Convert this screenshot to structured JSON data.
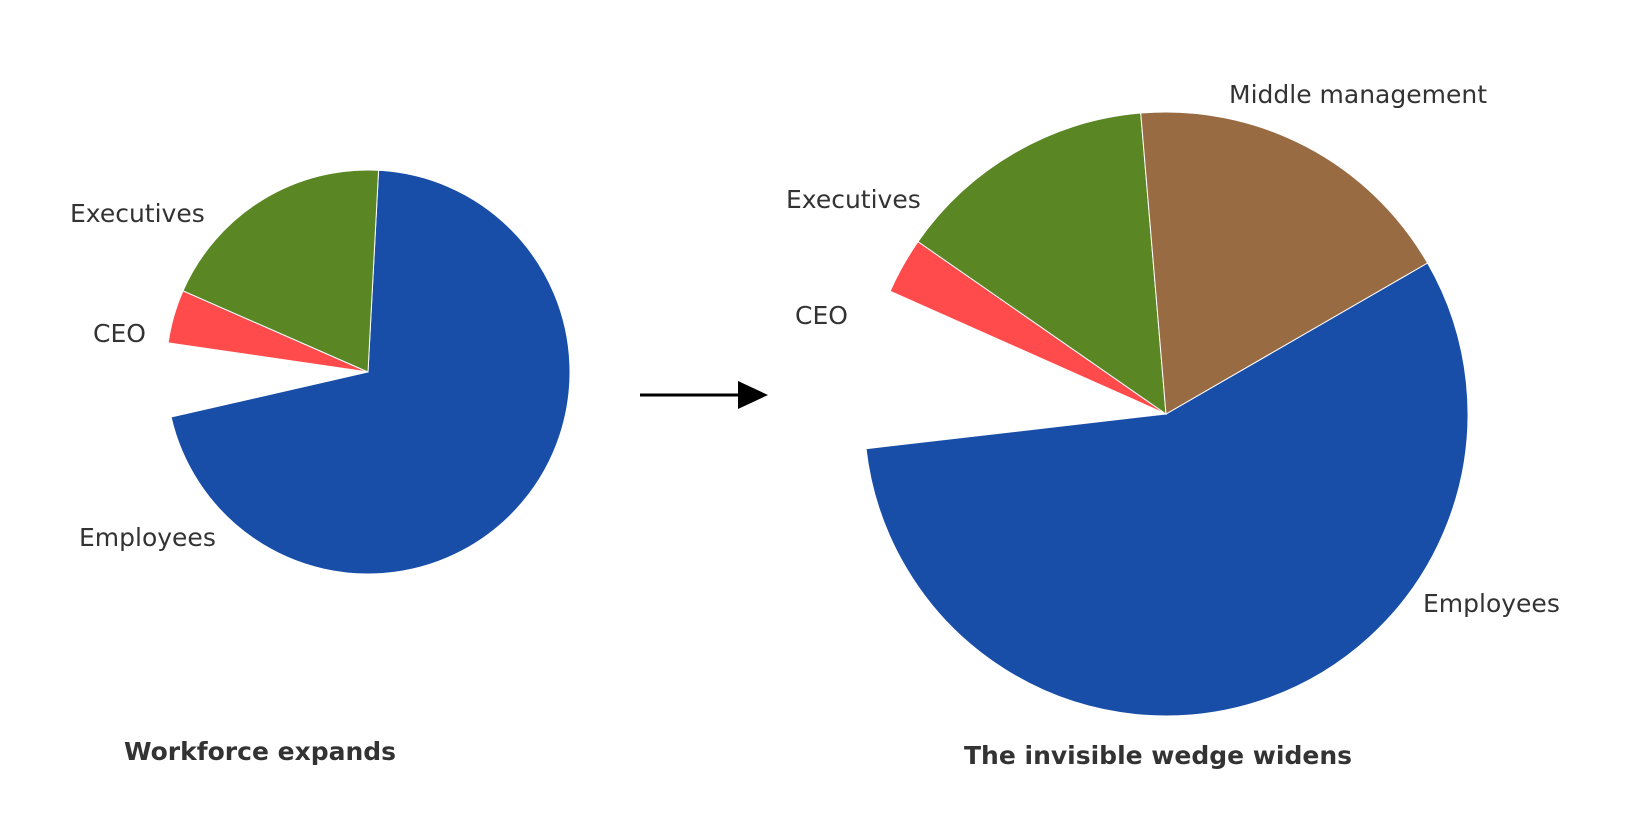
{
  "chart_data": [
    {
      "type": "pie",
      "title": "Workforce expands",
      "slices": [
        {
          "label": "Employees",
          "value": 66,
          "color": "#184ea8"
        },
        {
          "label": "",
          "value": 5.5,
          "color": "#ffffff"
        },
        {
          "label": "CEO",
          "value": 4,
          "color": "#ff4b4b"
        },
        {
          "label": "Executives",
          "value": 18,
          "color": "#5a8624"
        }
      ]
    },
    {
      "type": "pie",
      "title": "The invisible wedge widens",
      "slices": [
        {
          "label": "Employees",
          "value": 56.5,
          "color": "#184ea8"
        },
        {
          "label": "",
          "value": 8.5,
          "color": "#ffffff"
        },
        {
          "label": "CEO",
          "value": 3,
          "color": "#ff4b4b"
        },
        {
          "label": "Executives",
          "value": 14,
          "color": "#5a8624"
        },
        {
          "label": "Middle management",
          "value": 18,
          "color": "#986b43"
        }
      ]
    }
  ]
}
